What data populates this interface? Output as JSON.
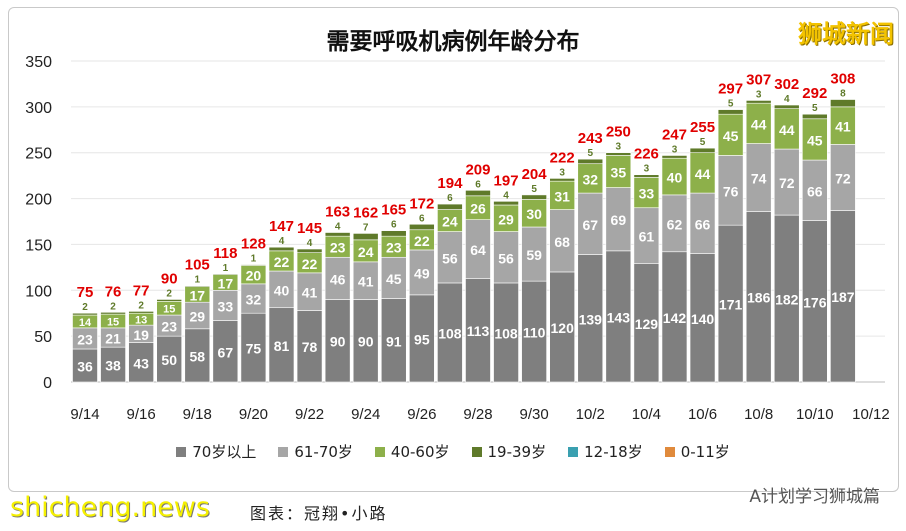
{
  "watermarks": {
    "top_right": "狮城新闻",
    "bottom_left": "shicheng.news",
    "bottom_right": "A计划学习狮城篇",
    "credit": "图表：冠翔•小路"
  },
  "chart_data": {
    "type": "bar",
    "stacked": true,
    "title": "需要呼吸机病例年龄分布",
    "xlabel": "",
    "ylabel": "",
    "ylim": [
      0,
      350
    ],
    "yticks": [
      0,
      50,
      100,
      150,
      200,
      250,
      300,
      350
    ],
    "grid": true,
    "legend": "bottom",
    "categories": [
      "9/14",
      "9/15",
      "9/16",
      "9/17",
      "9/18",
      "9/19",
      "9/20",
      "9/21",
      "9/22",
      "9/23",
      "9/24",
      "9/25",
      "9/26",
      "9/27",
      "9/28",
      "9/29",
      "9/30",
      "10/1",
      "10/2",
      "10/3",
      "10/4",
      "10/5",
      "10/6",
      "10/7",
      "10/8",
      "10/9",
      "10/10",
      "10/11"
    ],
    "xtick_labels": [
      "9/14",
      "9/16",
      "9/18",
      "9/20",
      "9/22",
      "9/24",
      "9/26",
      "9/28",
      "9/30",
      "10/2",
      "10/4",
      "10/6",
      "10/8",
      "10/10",
      "10/12"
    ],
    "totals": [
      75,
      76,
      77,
      90,
      105,
      118,
      128,
      147,
      145,
      163,
      162,
      165,
      172,
      194,
      209,
      197,
      204,
      222,
      243,
      250,
      226,
      247,
      255,
      297,
      307,
      302,
      292,
      308
    ],
    "series": [
      {
        "name": "70岁以上",
        "color": "#7f7f7f",
        "values": [
          36,
          38,
          43,
          50,
          58,
          67,
          75,
          81,
          78,
          90,
          90,
          91,
          95,
          108,
          113,
          108,
          110,
          120,
          139,
          143,
          129,
          142,
          140,
          171,
          186,
          182,
          176,
          187
        ]
      },
      {
        "name": "61-70岁",
        "color": "#a6a6a6",
        "values": [
          23,
          21,
          19,
          23,
          29,
          33,
          32,
          40,
          41,
          46,
          41,
          45,
          49,
          56,
          64,
          56,
          59,
          68,
          67,
          69,
          61,
          62,
          66,
          76,
          74,
          72,
          66,
          72
        ]
      },
      {
        "name": "40-60岁",
        "color": "#8db04a",
        "values": [
          14,
          15,
          13,
          15,
          17,
          17,
          20,
          22,
          22,
          23,
          24,
          23,
          22,
          24,
          26,
          29,
          30,
          31,
          32,
          35,
          33,
          40,
          44,
          45,
          44,
          44,
          45,
          41
        ]
      },
      {
        "name": "19-39岁",
        "color": "#5f7a2a",
        "values": [
          2,
          2,
          2,
          2,
          1,
          1,
          1,
          4,
          4,
          4,
          7,
          6,
          6,
          6,
          6,
          4,
          5,
          3,
          5,
          3,
          3,
          3,
          5,
          5,
          3,
          4,
          5,
          8
        ]
      },
      {
        "name": "12-18岁",
        "color": "#3aa0b0",
        "values": [
          0,
          0,
          0,
          0,
          0,
          0,
          0,
          0,
          0,
          0,
          0,
          0,
          0,
          0,
          0,
          0,
          0,
          0,
          0,
          0,
          0,
          0,
          0,
          0,
          0,
          0,
          0,
          0
        ]
      },
      {
        "name": "0-11岁",
        "color": "#e08a3c",
        "values": [
          0,
          0,
          0,
          0,
          0,
          0,
          0,
          0,
          0,
          0,
          0,
          0,
          0,
          0,
          0,
          0,
          0,
          0,
          0,
          0,
          0,
          0,
          0,
          0,
          0,
          0,
          0,
          0
        ]
      }
    ],
    "total_label_color": "#e00000"
  }
}
